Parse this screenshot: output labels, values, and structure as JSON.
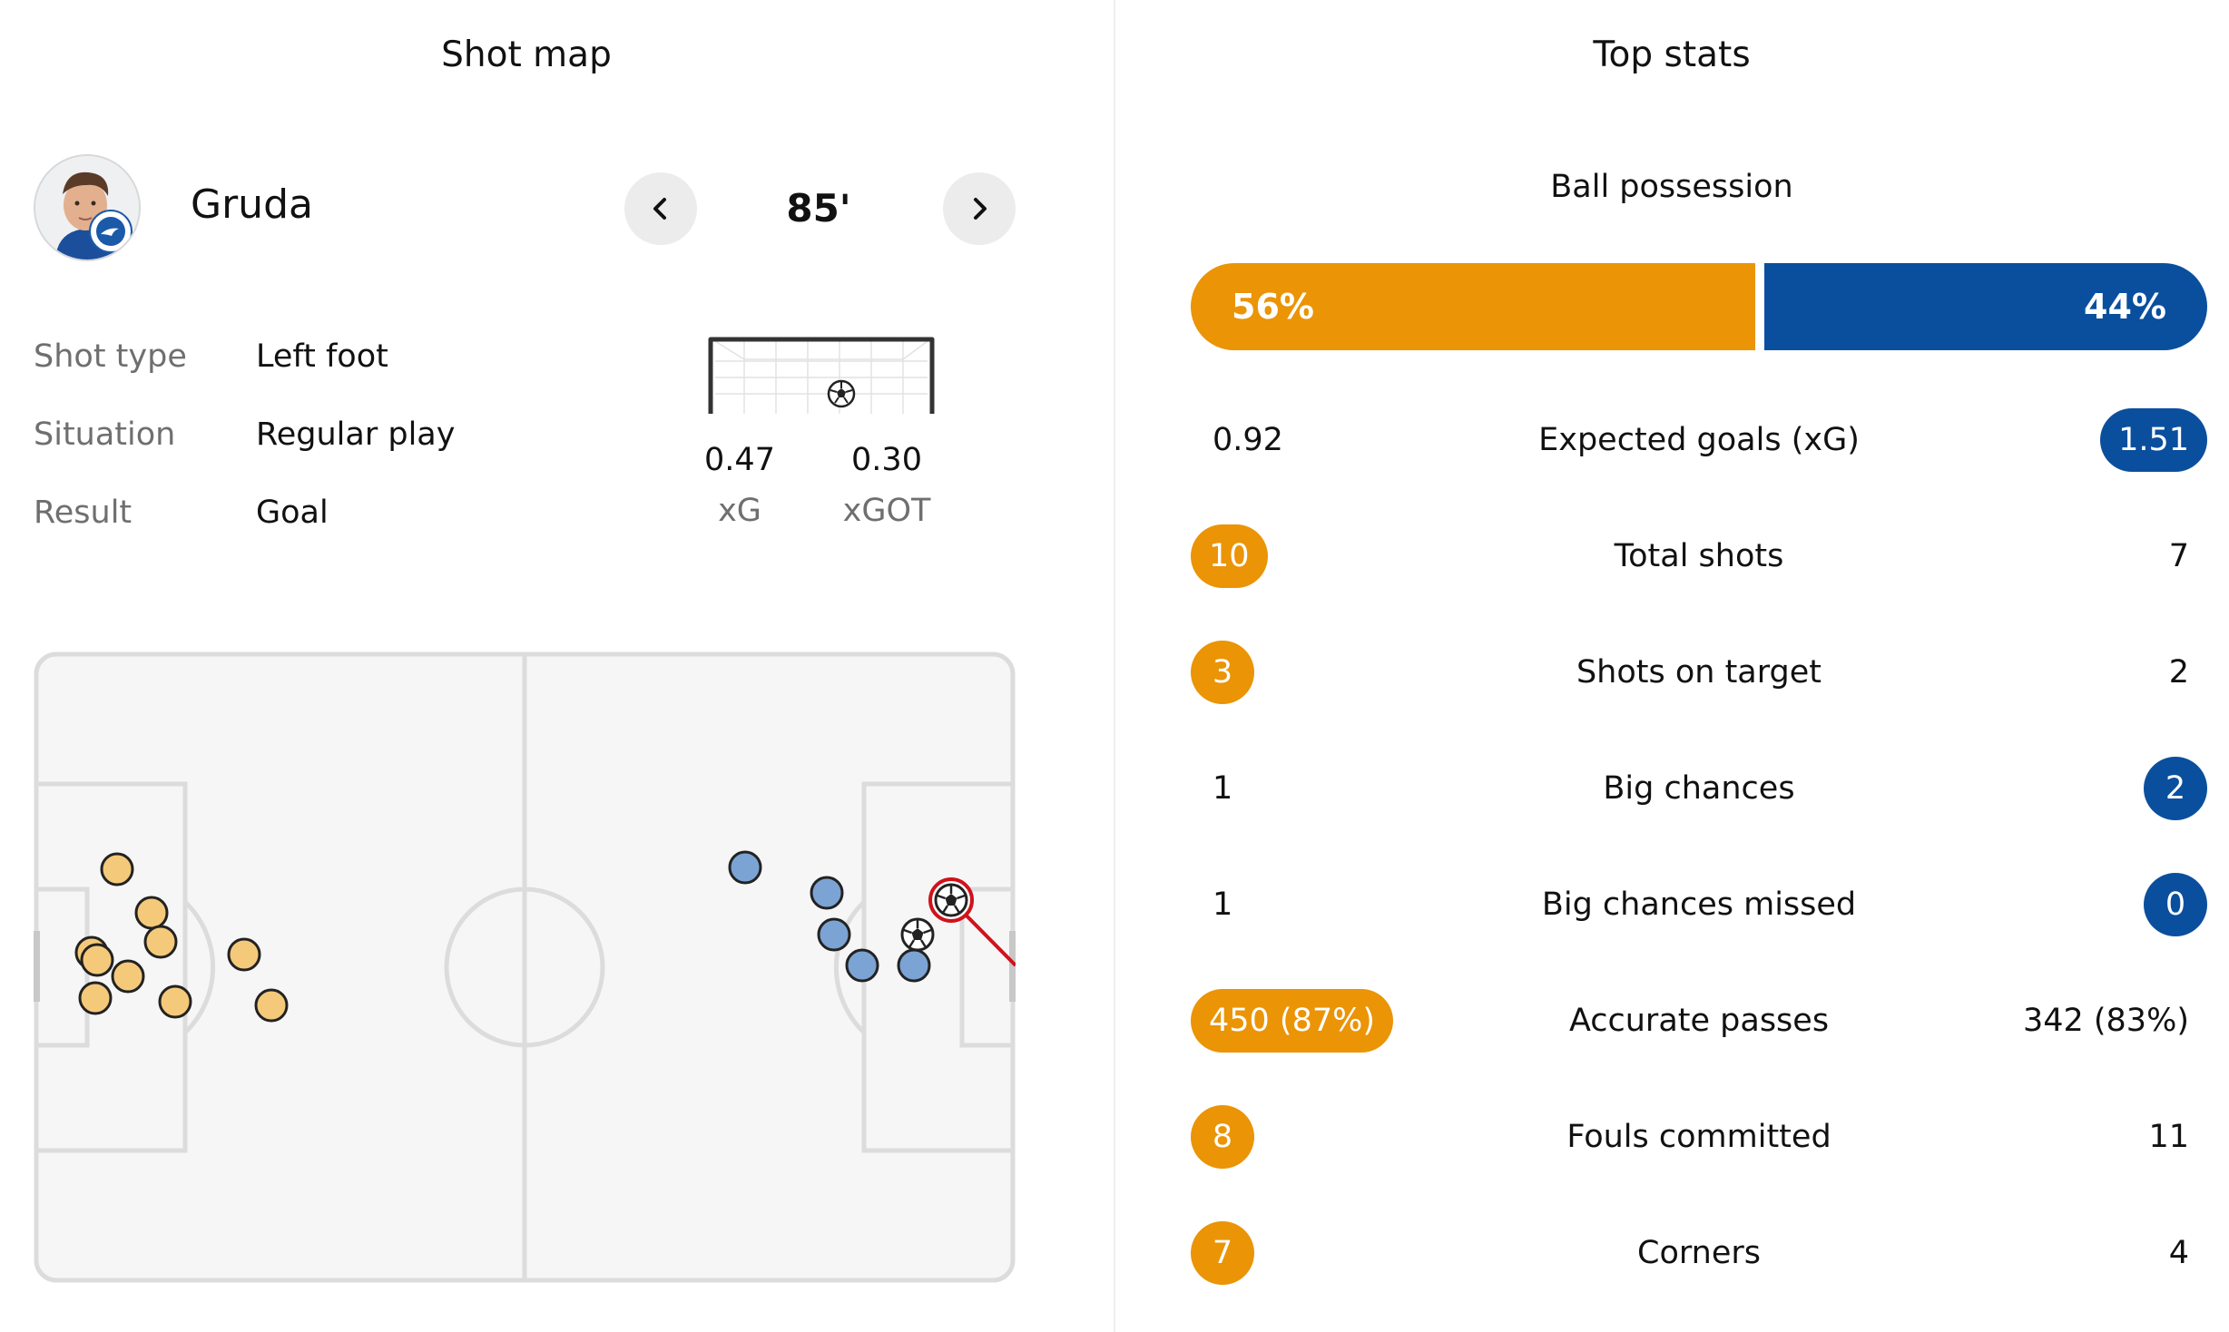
{
  "left_panel": {
    "title": "Shot map",
    "player": {
      "name": "Gruda"
    },
    "minute": "85'",
    "shot_info": [
      {
        "label": "Shot type",
        "value": "Left foot"
      },
      {
        "label": "Situation",
        "value": "Regular play"
      },
      {
        "label": "Result",
        "value": "Goal"
      }
    ],
    "xg": {
      "value": "0.47",
      "label": "xG"
    },
    "xgot": {
      "value": "0.30",
      "label": "xGOT"
    }
  },
  "right_panel": {
    "title": "Top stats",
    "possession": {
      "label": "Ball possession",
      "home": "56%",
      "away": "44%",
      "home_fraction": 0.56
    },
    "stats": [
      {
        "label": "Expected goals (xG)",
        "home": "0.92",
        "away": "1.51",
        "highlight": "away"
      },
      {
        "label": "Total shots",
        "home": "10",
        "away": "7",
        "highlight": "home"
      },
      {
        "label": "Shots on target",
        "home": "3",
        "away": "2",
        "highlight": "home"
      },
      {
        "label": "Big chances",
        "home": "1",
        "away": "2",
        "highlight": "away"
      },
      {
        "label": "Big chances missed",
        "home": "1",
        "away": "0",
        "highlight": "away"
      },
      {
        "label": "Accurate passes",
        "home": "450 (87%)",
        "away": "342 (83%)",
        "highlight": "home"
      },
      {
        "label": "Fouls committed",
        "home": "8",
        "away": "11",
        "highlight": "home"
      },
      {
        "label": "Corners",
        "home": "7",
        "away": "4",
        "highlight": "home"
      }
    ]
  },
  "colors": {
    "home": "#ea9406",
    "away": "#0a4f9e",
    "home_shot": "#f5c97a",
    "away_shot": "#7ba3d4",
    "selected": "#d0121b"
  },
  "icons": [
    "chevron-left-icon",
    "chevron-right-icon",
    "football-icon",
    "club-crest-icon"
  ]
}
